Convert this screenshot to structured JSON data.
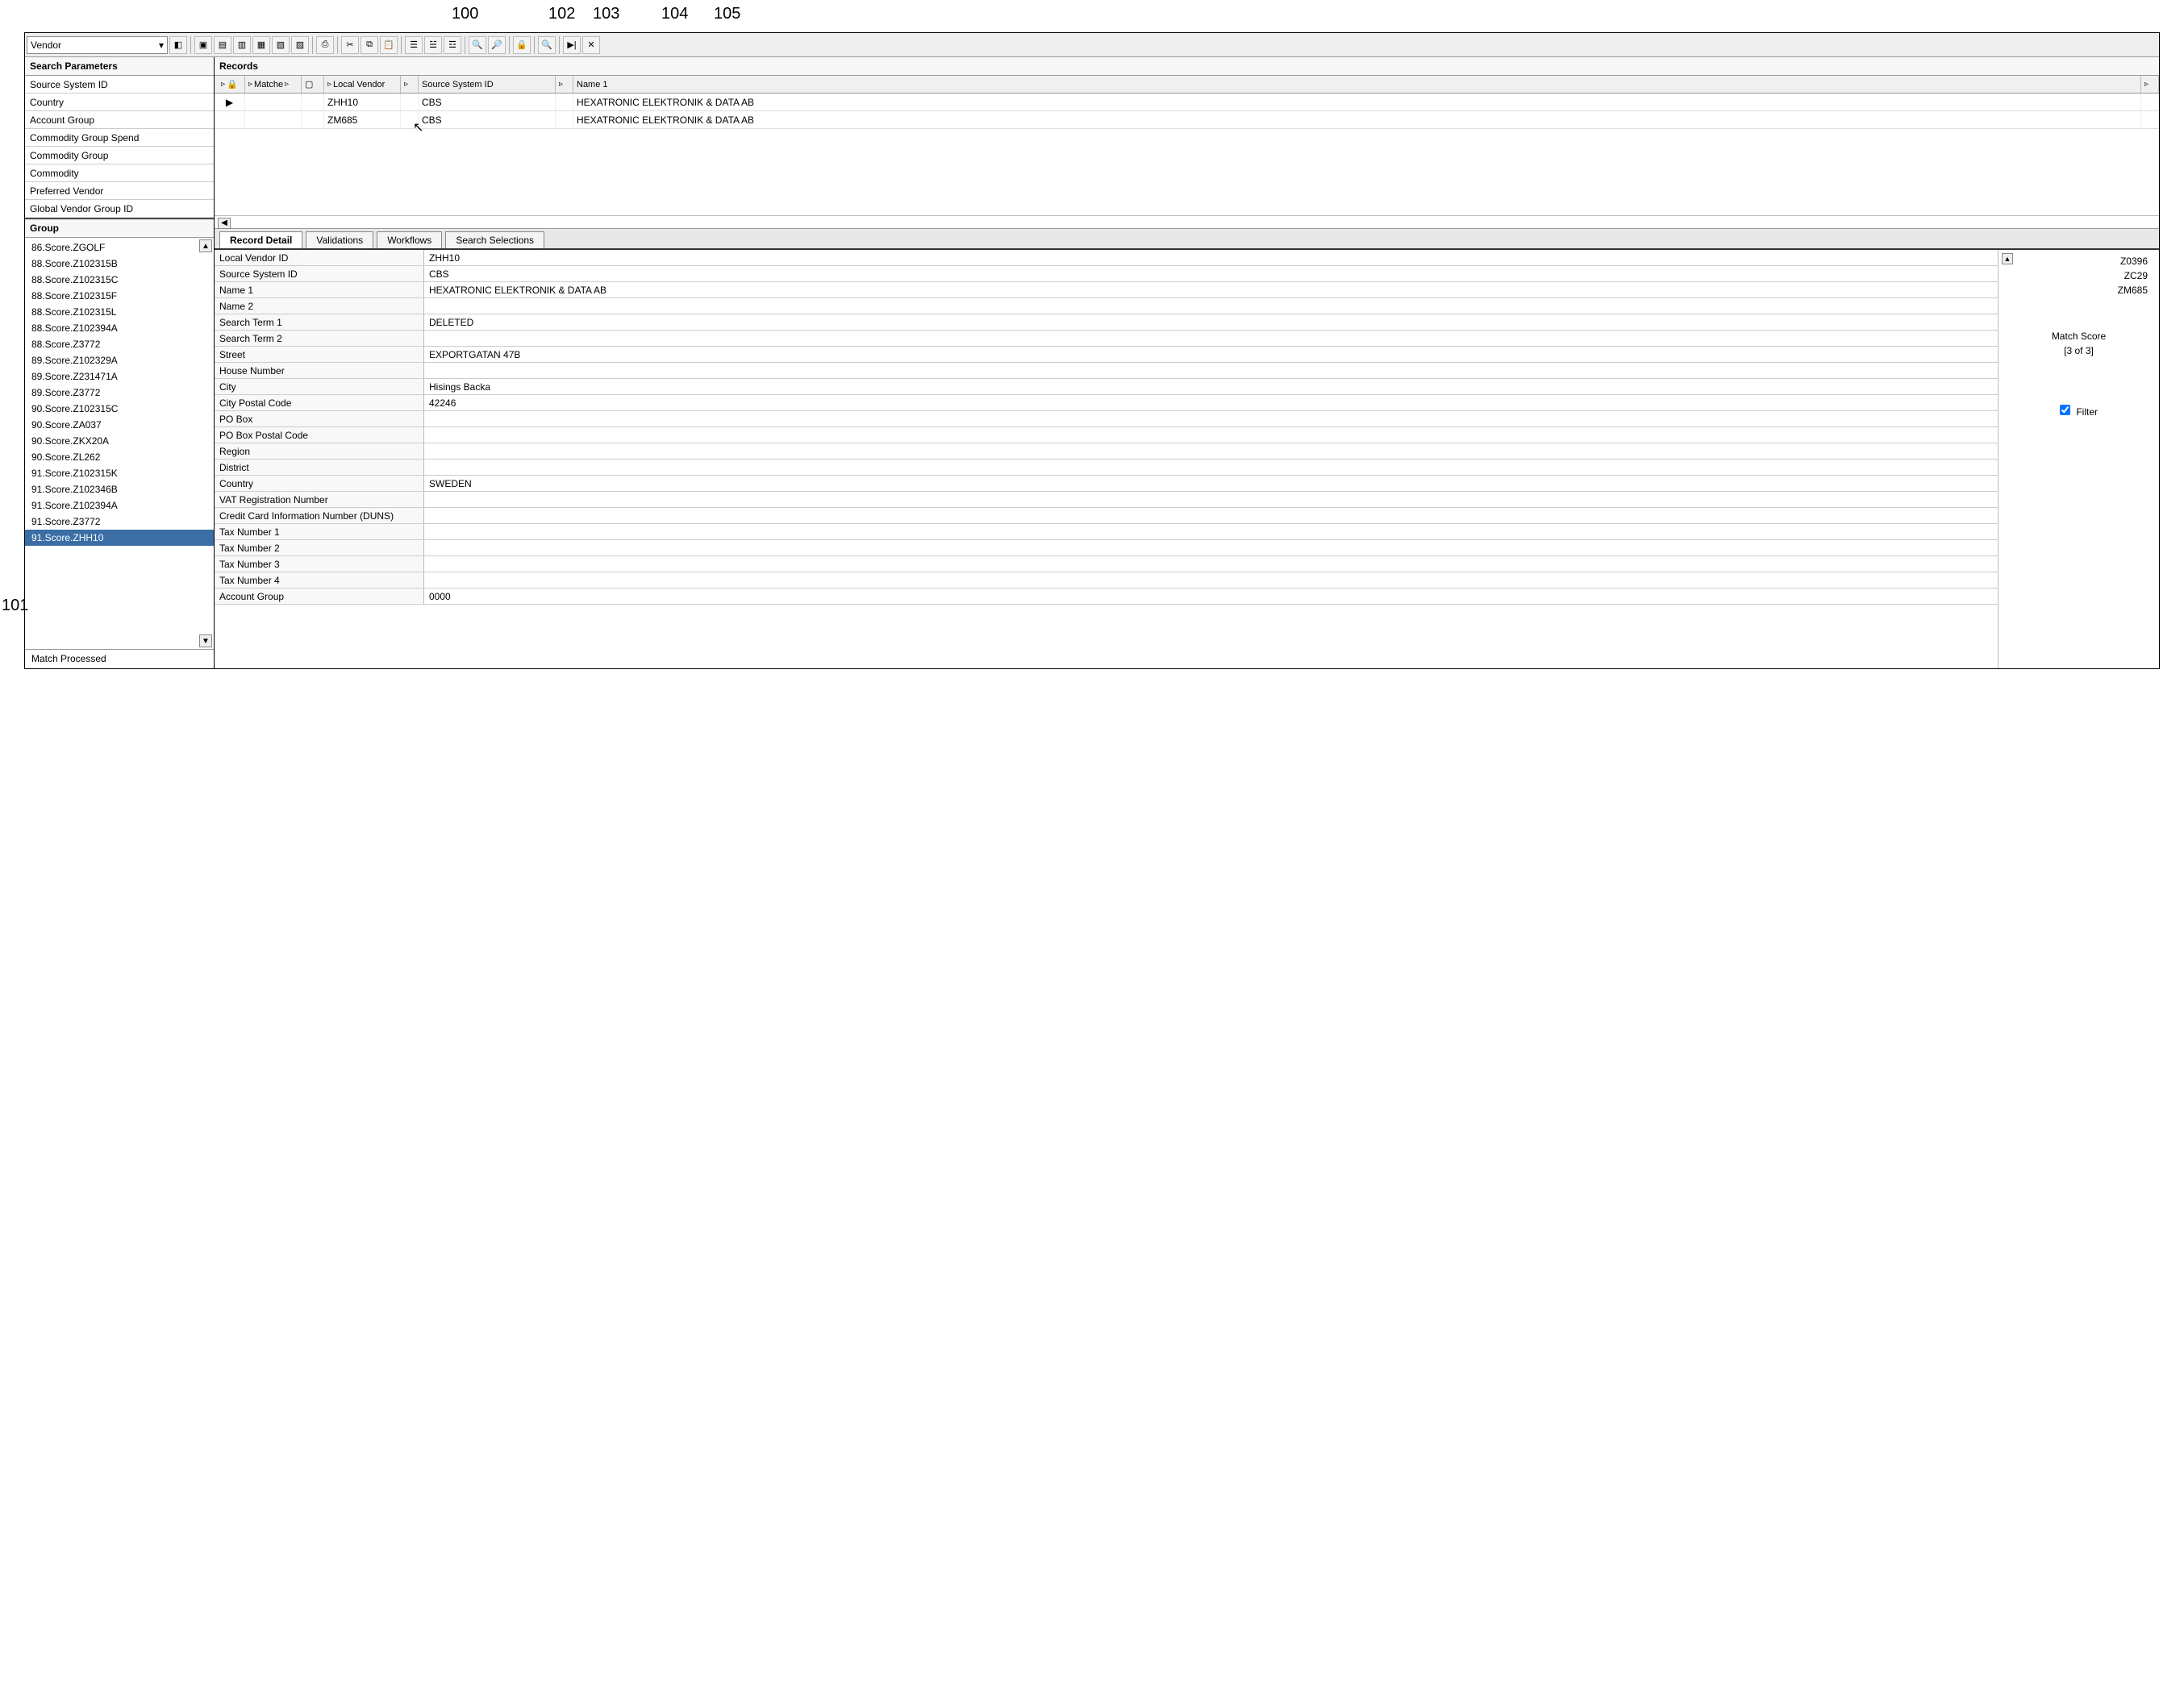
{
  "callouts": {
    "c100": "100",
    "c101": "101",
    "c102": "102",
    "c103": "103",
    "c104": "104",
    "c105": "105"
  },
  "toolbar": {
    "dropdown_label": "Vendor"
  },
  "left": {
    "search_params_title": "Search Parameters",
    "params": [
      "Source System ID",
      "Country",
      "Account Group",
      "Commodity Group Spend",
      "Commodity Group",
      "Commodity",
      "Preferred Vendor",
      "Global Vendor Group ID"
    ],
    "group_title": "Group",
    "group_items": [
      "86.Score.ZGOLF",
      "88.Score.Z102315B",
      "88.Score.Z102315C",
      "88.Score.Z102315F",
      "88.Score.Z102315L",
      "88.Score.Z102394A",
      "88.Score.Z3772",
      "89.Score.Z102329A",
      "89.Score.Z231471A",
      "89.Score.Z3772",
      "90.Score.Z102315C",
      "90.Score.ZA037",
      "90.Score.ZKX20A",
      "90.Score.ZL262",
      "91.Score.Z102315K",
      "91.Score.Z102346B",
      "91.Score.Z102394A",
      "91.Score.Z3772",
      "91.Score.ZHH10"
    ],
    "selected_index": 18,
    "match_processed": "Match Processed"
  },
  "records": {
    "title": "Records",
    "columns": {
      "matched": "Matche",
      "local_vendor": "Local Vendor",
      "source_system_id": "Source System ID",
      "name1": "Name 1"
    },
    "rows": [
      {
        "play": "▶",
        "local": "ZHH10",
        "ssid": "CBS",
        "name": "HEXATRONIC ELEKTRONIK & DATA AB"
      },
      {
        "play": "",
        "local": "ZM685",
        "ssid": "CBS",
        "name": "HEXATRONIC ELEKTRONIK & DATA AB"
      }
    ]
  },
  "tabs": {
    "t0": "Record Detail",
    "t1": "Validations",
    "t2": "Workflows",
    "t3": "Search Selections"
  },
  "detail": {
    "fields": [
      {
        "label": "Local Vendor ID",
        "value": "ZHH10"
      },
      {
        "label": "Source System ID",
        "value": "CBS"
      },
      {
        "label": "Name 1",
        "value": "HEXATRONIC ELEKTRONIK & DATA AB"
      },
      {
        "label": "Name 2",
        "value": ""
      },
      {
        "label": "Search Term 1",
        "value": "DELETED"
      },
      {
        "label": "Search Term 2",
        "value": ""
      },
      {
        "label": "Street",
        "value": "EXPORTGATAN 47B"
      },
      {
        "label": "House Number",
        "value": ""
      },
      {
        "label": "City",
        "value": "Hisings Backa"
      },
      {
        "label": "City Postal Code",
        "value": "42246"
      },
      {
        "label": "PO Box",
        "value": ""
      },
      {
        "label": "PO Box Postal Code",
        "value": ""
      },
      {
        "label": "Region",
        "value": ""
      },
      {
        "label": "District",
        "value": ""
      },
      {
        "label": "Country",
        "value": "SWEDEN"
      },
      {
        "label": "VAT Registration Number",
        "value": ""
      },
      {
        "label": "Credit Card Information Number (DUNS)",
        "value": ""
      },
      {
        "label": "Tax Number 1",
        "value": ""
      },
      {
        "label": "Tax Number 2",
        "value": ""
      },
      {
        "label": "Tax Number 3",
        "value": ""
      },
      {
        "label": "Tax Number 4",
        "value": ""
      },
      {
        "label": "Account Group",
        "value": "0000"
      }
    ]
  },
  "side": {
    "codes": [
      "Z0396",
      "ZC29",
      "ZM685"
    ],
    "match_score_label": "Match Score",
    "match_score_value": "[3 of 3]",
    "filter_label": "Filter"
  }
}
